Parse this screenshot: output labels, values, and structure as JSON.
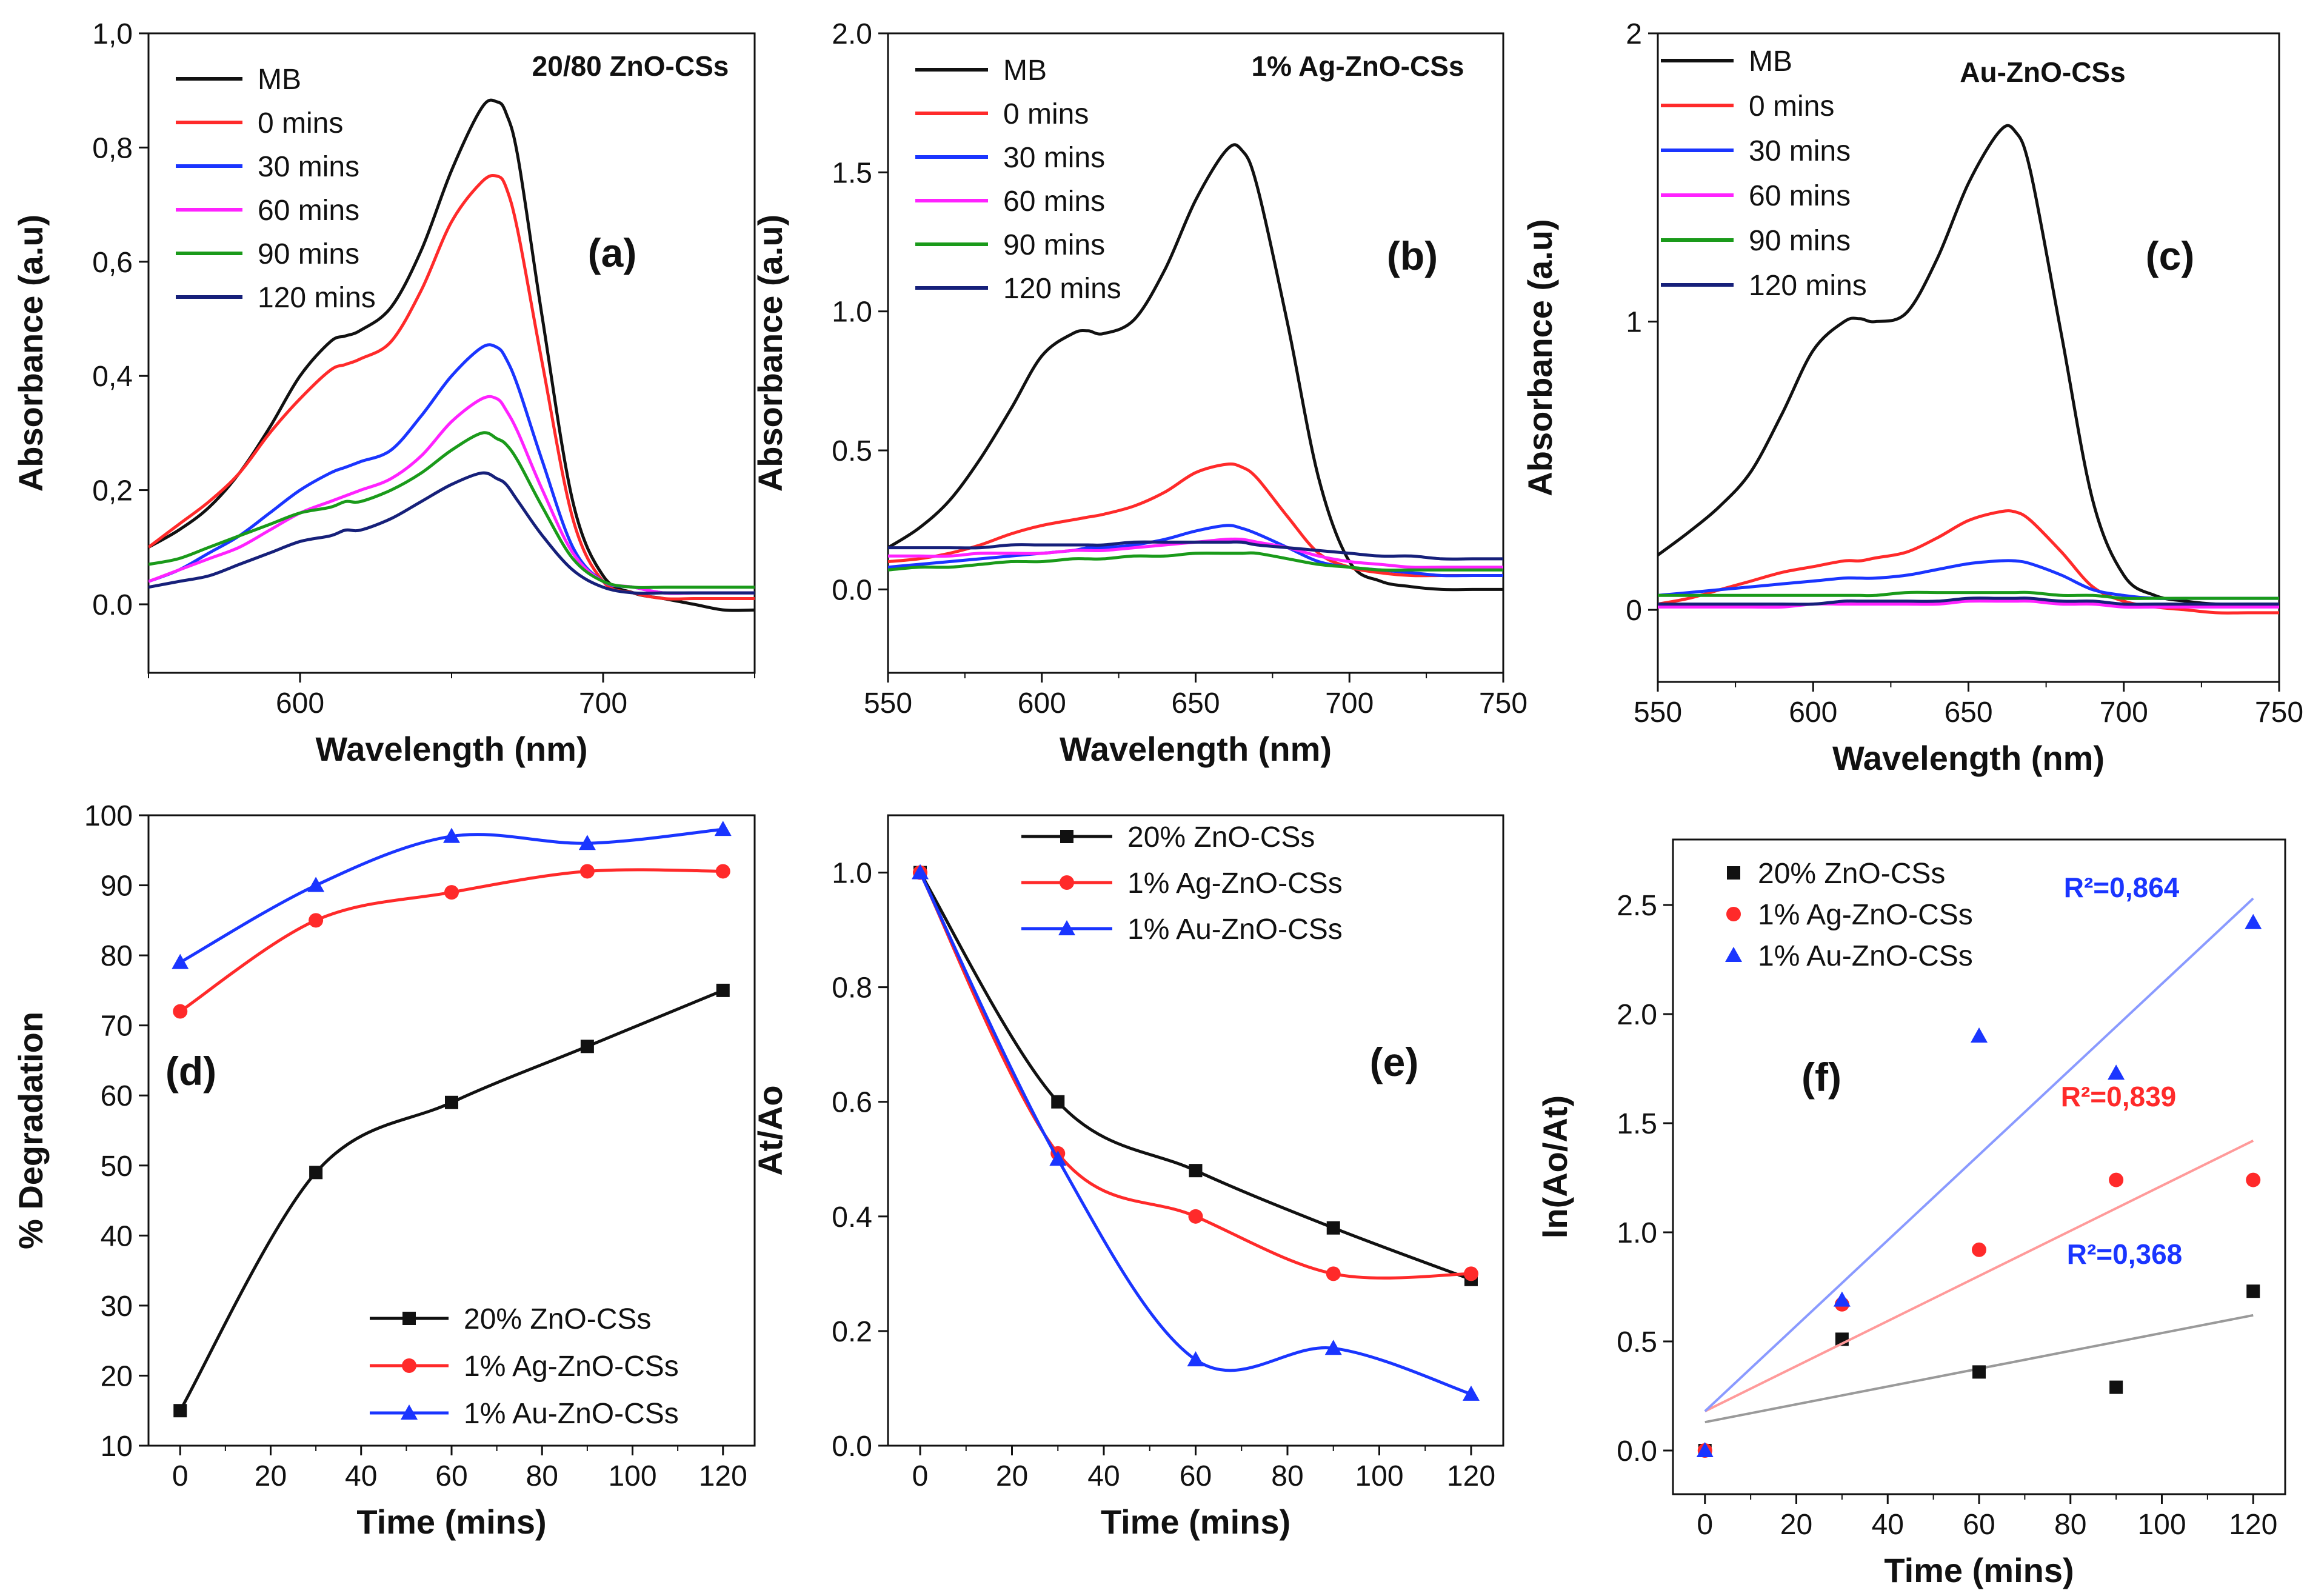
{
  "chart_data": [
    {
      "id": "a",
      "type": "line",
      "panel_label": "(a)",
      "title": "20/80 ZnO-CSs",
      "xlabel": "Wavelength (nm)",
      "ylabel": "Absorbance (a.u)",
      "xlim": [
        550,
        750
      ],
      "ylim": [
        -0.12,
        1.0
      ],
      "xticks": [
        600,
        700
      ],
      "xtick_labels": [
        "600",
        "700"
      ],
      "yticks": [
        0.0,
        0.2,
        0.4,
        0.6,
        0.8,
        1.0
      ],
      "ytick_labels": [
        "0.0",
        "0,2",
        "0,4",
        "0,6",
        "0,8",
        "1,0"
      ],
      "x": [
        550,
        560,
        570,
        580,
        590,
        600,
        610,
        615,
        620,
        630,
        640,
        650,
        660,
        665,
        668,
        672,
        680,
        690,
        700,
        710,
        720,
        730,
        740,
        750
      ],
      "series": [
        {
          "name": "MB",
          "color": "#111111",
          "values": [
            0.1,
            0.13,
            0.17,
            0.23,
            0.31,
            0.4,
            0.46,
            0.47,
            0.48,
            0.52,
            0.62,
            0.76,
            0.87,
            0.88,
            0.86,
            0.78,
            0.5,
            0.18,
            0.05,
            0.02,
            0.01,
            0.0,
            -0.01,
            -0.01
          ]
        },
        {
          "name": "0 mins",
          "color": "#ff2a2a",
          "values": [
            0.1,
            0.14,
            0.18,
            0.23,
            0.3,
            0.36,
            0.41,
            0.42,
            0.43,
            0.46,
            0.55,
            0.67,
            0.74,
            0.75,
            0.73,
            0.65,
            0.42,
            0.15,
            0.04,
            0.02,
            0.01,
            0.01,
            0.01,
            0.01
          ]
        },
        {
          "name": "30 mins",
          "color": "#1a35ff",
          "values": [
            0.04,
            0.06,
            0.09,
            0.12,
            0.16,
            0.2,
            0.23,
            0.24,
            0.25,
            0.27,
            0.33,
            0.4,
            0.45,
            0.45,
            0.43,
            0.38,
            0.25,
            0.1,
            0.04,
            0.03,
            0.02,
            0.02,
            0.02,
            0.02
          ]
        },
        {
          "name": "60 mins",
          "color": "#ff22ff",
          "values": [
            0.04,
            0.06,
            0.08,
            0.1,
            0.13,
            0.16,
            0.18,
            0.19,
            0.2,
            0.22,
            0.26,
            0.32,
            0.36,
            0.36,
            0.34,
            0.3,
            0.2,
            0.09,
            0.04,
            0.03,
            0.02,
            0.02,
            0.02,
            0.02
          ]
        },
        {
          "name": "90 mins",
          "color": "#1a9a1a",
          "values": [
            0.07,
            0.08,
            0.1,
            0.12,
            0.14,
            0.16,
            0.17,
            0.18,
            0.18,
            0.2,
            0.23,
            0.27,
            0.3,
            0.29,
            0.28,
            0.25,
            0.17,
            0.08,
            0.04,
            0.03,
            0.03,
            0.03,
            0.03,
            0.03
          ]
        },
        {
          "name": "120 mins",
          "color": "#16207a",
          "values": [
            0.03,
            0.04,
            0.05,
            0.07,
            0.09,
            0.11,
            0.12,
            0.13,
            0.13,
            0.15,
            0.18,
            0.21,
            0.23,
            0.22,
            0.21,
            0.18,
            0.12,
            0.06,
            0.03,
            0.02,
            0.02,
            0.02,
            0.02,
            0.02
          ]
        }
      ]
    },
    {
      "id": "b",
      "type": "line",
      "panel_label": "(b)",
      "title": "1% Ag-ZnO-CSs",
      "xlabel": "Wavelength (nm)",
      "ylabel": "Absorbance (a.u)",
      "xlim": [
        550,
        750
      ],
      "ylim": [
        -0.3,
        2.0
      ],
      "xticks": [
        550,
        600,
        650,
        700,
        750
      ],
      "xtick_labels": [
        "550",
        "600",
        "650",
        "700",
        "750"
      ],
      "yticks": [
        0.0,
        0.5,
        1.0,
        1.5,
        2.0
      ],
      "ytick_labels": [
        "0.0",
        "0.5",
        "1.0",
        "1.5",
        "2.0"
      ],
      "x": [
        550,
        560,
        570,
        580,
        590,
        600,
        610,
        615,
        620,
        630,
        640,
        650,
        660,
        665,
        670,
        680,
        690,
        700,
        710,
        720,
        730,
        740,
        750
      ],
      "series": [
        {
          "name": "MB",
          "color": "#111111",
          "values": [
            0.15,
            0.22,
            0.32,
            0.47,
            0.65,
            0.84,
            0.92,
            0.93,
            0.92,
            0.97,
            1.15,
            1.4,
            1.58,
            1.58,
            1.45,
            0.95,
            0.4,
            0.1,
            0.03,
            0.01,
            0.0,
            0.0,
            0.0
          ]
        },
        {
          "name": "0 mins",
          "color": "#ff2a2a",
          "values": [
            0.1,
            0.11,
            0.13,
            0.16,
            0.2,
            0.23,
            0.25,
            0.26,
            0.27,
            0.3,
            0.35,
            0.42,
            0.45,
            0.44,
            0.4,
            0.26,
            0.13,
            0.08,
            0.06,
            0.05,
            0.05,
            0.05,
            0.05
          ]
        },
        {
          "name": "30 mins",
          "color": "#1a35ff",
          "values": [
            0.08,
            0.09,
            0.1,
            0.11,
            0.12,
            0.13,
            0.14,
            0.15,
            0.15,
            0.16,
            0.18,
            0.21,
            0.23,
            0.22,
            0.2,
            0.15,
            0.1,
            0.08,
            0.07,
            0.06,
            0.05,
            0.05,
            0.05
          ]
        },
        {
          "name": "60 mins",
          "color": "#ff22ff",
          "values": [
            0.12,
            0.12,
            0.12,
            0.13,
            0.13,
            0.13,
            0.14,
            0.14,
            0.14,
            0.15,
            0.16,
            0.17,
            0.18,
            0.18,
            0.17,
            0.15,
            0.12,
            0.1,
            0.09,
            0.08,
            0.08,
            0.08,
            0.08
          ]
        },
        {
          "name": "90 mins",
          "color": "#1a9a1a",
          "values": [
            0.07,
            0.08,
            0.08,
            0.09,
            0.1,
            0.1,
            0.11,
            0.11,
            0.11,
            0.12,
            0.12,
            0.13,
            0.13,
            0.13,
            0.13,
            0.11,
            0.09,
            0.08,
            0.07,
            0.07,
            0.07,
            0.07,
            0.07
          ]
        },
        {
          "name": "120 mins",
          "color": "#16207a",
          "values": [
            0.15,
            0.15,
            0.15,
            0.15,
            0.16,
            0.16,
            0.16,
            0.16,
            0.16,
            0.17,
            0.17,
            0.17,
            0.17,
            0.17,
            0.16,
            0.15,
            0.14,
            0.13,
            0.12,
            0.12,
            0.11,
            0.11,
            0.11
          ]
        }
      ]
    },
    {
      "id": "c",
      "type": "line",
      "panel_label": "(c)",
      "title": "Au-ZnO-CSs",
      "xlabel": "Wavelength (nm)",
      "ylabel": "Absorbance (a.u)",
      "xlim": [
        550,
        750
      ],
      "ylim": [
        -0.25,
        2.0
      ],
      "xticks": [
        550,
        600,
        650,
        700,
        750
      ],
      "xtick_labels": [
        "550",
        "600",
        "650",
        "700",
        "750"
      ],
      "yticks": [
        0,
        1,
        2
      ],
      "ytick_labels": [
        "0",
        "1",
        "2"
      ],
      "x": [
        550,
        560,
        570,
        580,
        590,
        600,
        610,
        615,
        620,
        630,
        640,
        650,
        660,
        665,
        670,
        680,
        690,
        700,
        710,
        720,
        730,
        740,
        750
      ],
      "series": [
        {
          "name": "MB",
          "color": "#111111",
          "values": [
            0.19,
            0.27,
            0.36,
            0.48,
            0.68,
            0.9,
            1.0,
            1.01,
            1.0,
            1.03,
            1.22,
            1.48,
            1.66,
            1.66,
            1.52,
            0.95,
            0.38,
            0.12,
            0.05,
            0.03,
            0.02,
            0.02,
            0.02
          ]
        },
        {
          "name": "0 mins",
          "color": "#ff2a2a",
          "values": [
            0.02,
            0.04,
            0.07,
            0.1,
            0.13,
            0.15,
            0.17,
            0.17,
            0.18,
            0.2,
            0.25,
            0.31,
            0.34,
            0.34,
            0.31,
            0.2,
            0.08,
            0.03,
            0.01,
            0.0,
            -0.01,
            -0.01,
            -0.01
          ]
        },
        {
          "name": "30 mins",
          "color": "#1a35ff",
          "values": [
            0.05,
            0.06,
            0.07,
            0.08,
            0.09,
            0.1,
            0.11,
            0.11,
            0.11,
            0.12,
            0.14,
            0.16,
            0.17,
            0.17,
            0.16,
            0.12,
            0.07,
            0.05,
            0.04,
            0.04,
            0.04,
            0.04,
            0.04
          ]
        },
        {
          "name": "60 mins",
          "color": "#ff22ff",
          "values": [
            0.01,
            0.01,
            0.01,
            0.01,
            0.01,
            0.02,
            0.02,
            0.02,
            0.02,
            0.02,
            0.02,
            0.03,
            0.03,
            0.03,
            0.03,
            0.02,
            0.02,
            0.01,
            0.01,
            0.01,
            0.01,
            0.01,
            0.01
          ]
        },
        {
          "name": "90 mins",
          "color": "#1a9a1a",
          "values": [
            0.05,
            0.05,
            0.05,
            0.05,
            0.05,
            0.05,
            0.05,
            0.05,
            0.05,
            0.06,
            0.06,
            0.06,
            0.06,
            0.06,
            0.06,
            0.05,
            0.05,
            0.04,
            0.04,
            0.04,
            0.04,
            0.04,
            0.04
          ]
        },
        {
          "name": "120 mins",
          "color": "#16207a",
          "values": [
            0.02,
            0.02,
            0.02,
            0.02,
            0.02,
            0.02,
            0.03,
            0.03,
            0.03,
            0.03,
            0.03,
            0.04,
            0.04,
            0.04,
            0.04,
            0.03,
            0.03,
            0.02,
            0.02,
            0.02,
            0.02,
            0.02,
            0.02
          ]
        }
      ]
    },
    {
      "id": "d",
      "type": "line",
      "panel_label": "(d)",
      "title": "",
      "xlabel": "Time (mins)",
      "ylabel": "% Degradation",
      "xlim": [
        -7,
        127
      ],
      "ylim": [
        10,
        100
      ],
      "xticks": [
        0,
        20,
        40,
        60,
        80,
        100,
        120
      ],
      "xtick_labels": [
        "0",
        "20",
        "40",
        "60",
        "80",
        "100",
        "120"
      ],
      "yticks": [
        10,
        20,
        30,
        40,
        50,
        60,
        70,
        80,
        90,
        100
      ],
      "ytick_labels": [
        "10",
        "20",
        "30",
        "40",
        "50",
        "60",
        "70",
        "80",
        "90",
        "100"
      ],
      "x": [
        0,
        30,
        60,
        90,
        120
      ],
      "series": [
        {
          "name": "20% ZnO-CSs",
          "color": "#111111",
          "marker": "square",
          "values": [
            15,
            49,
            59,
            67,
            75
          ]
        },
        {
          "name": "1% Ag-ZnO-CSs",
          "color": "#ff2a2a",
          "marker": "circle",
          "values": [
            72,
            85,
            89,
            92,
            92
          ]
        },
        {
          "name": "1% Au-ZnO-CSs",
          "color": "#1a35ff",
          "marker": "triangle",
          "values": [
            79,
            90,
            97,
            96,
            98
          ]
        }
      ]
    },
    {
      "id": "e",
      "type": "line",
      "panel_label": "(e)",
      "title": "",
      "xlabel": "Time (mins)",
      "ylabel": "At/Ao",
      "xlim": [
        -7,
        127
      ],
      "ylim": [
        0.0,
        1.1
      ],
      "xticks": [
        0,
        20,
        40,
        60,
        80,
        100,
        120
      ],
      "xtick_labels": [
        "0",
        "20",
        "40",
        "60",
        "80",
        "100",
        "120"
      ],
      "yticks": [
        0.0,
        0.2,
        0.4,
        0.6,
        0.8,
        1.0
      ],
      "ytick_labels": [
        "0.0",
        "0.2",
        "0.4",
        "0.6",
        "0.8",
        "1.0"
      ],
      "x": [
        0,
        30,
        60,
        90,
        120
      ],
      "series": [
        {
          "name": "20% ZnO-CSs",
          "color": "#111111",
          "marker": "square",
          "values": [
            1.0,
            0.6,
            0.48,
            0.38,
            0.29
          ]
        },
        {
          "name": "1% Ag-ZnO-CSs",
          "color": "#ff2a2a",
          "marker": "circle",
          "values": [
            1.0,
            0.51,
            0.4,
            0.3,
            0.3
          ]
        },
        {
          "name": "1% Au-ZnO-CSs",
          "color": "#1a35ff",
          "marker": "triangle",
          "values": [
            1.0,
            0.5,
            0.15,
            0.17,
            0.09
          ]
        }
      ]
    },
    {
      "id": "f",
      "type": "scatter",
      "panel_label": "(f)",
      "title": "",
      "xlabel": "Time (mins)",
      "ylabel": "ln(Ao/At)",
      "xlim": [
        -7,
        127
      ],
      "ylim": [
        -0.2,
        2.8
      ],
      "xticks": [
        0,
        20,
        40,
        60,
        80,
        100,
        120
      ],
      "xtick_labels": [
        "0",
        "20",
        "40",
        "60",
        "80",
        "100",
        "120"
      ],
      "yticks": [
        0.0,
        0.5,
        1.0,
        1.5,
        2.0,
        2.5
      ],
      "ytick_labels": [
        "0.0",
        "0.5",
        "1.0",
        "1.5",
        "2.0",
        "2.5"
      ],
      "x": [
        0,
        30,
        60,
        90,
        120
      ],
      "series": [
        {
          "name": "20% ZnO-CSs",
          "color": "#111111",
          "marker": "square",
          "values": [
            0.0,
            0.51,
            0.36,
            0.29,
            0.73
          ],
          "fit": [
            0.13,
            0.62
          ],
          "fit_color": "#9a9a9a"
        },
        {
          "name": "1% Ag-ZnO-CSs",
          "color": "#ff2a2a",
          "marker": "circle",
          "values": [
            0.0,
            0.67,
            0.92,
            1.24,
            1.24
          ],
          "fit": [
            0.18,
            1.42
          ],
          "fit_color": "#ff9a9a"
        },
        {
          "name": "1% Au-ZnO-CSs",
          "color": "#1a35ff",
          "marker": "triangle",
          "values": [
            0.0,
            0.69,
            1.9,
            1.73,
            2.42
          ],
          "fit": [
            0.18,
            2.53
          ],
          "fit_color": "#8a9aff"
        }
      ],
      "annotations": [
        {
          "text": "R²=0,864",
          "color": "#1a35ff"
        },
        {
          "text": "R²=0,839",
          "color": "#ff2a2a"
        },
        {
          "text": "R²=0,368",
          "color": "#1a35ff"
        }
      ]
    }
  ]
}
